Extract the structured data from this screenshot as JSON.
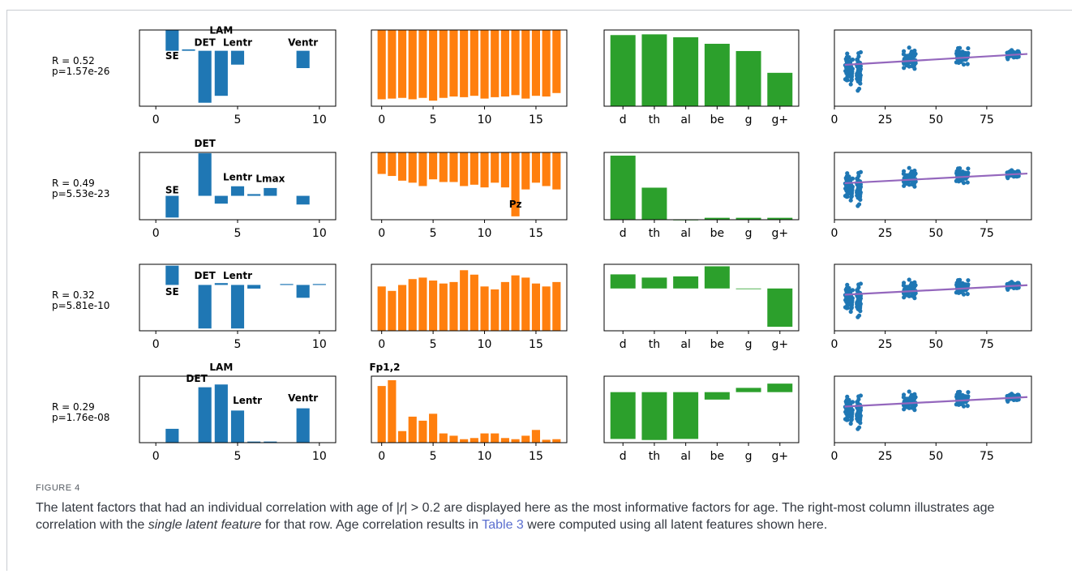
{
  "figure": {
    "label": "FIGURE 4",
    "caption": {
      "pre": "The latent factors that had an individual correlation with age of |",
      "r": "r",
      "mid": "| > 0.2 are displayed here as the most informative factors for age. The right-most column illustrates age correlation with the ",
      "italic": "single latent feature",
      "post1": " for that row. Age correlation results in ",
      "link": "Table 3",
      "post2": " were computed using all latent features shown here."
    }
  },
  "colors": {
    "blue": "#1f77b4",
    "orange": "#ff7f0e",
    "green": "#2ca02c",
    "fit_line": "#9467bd",
    "scatter": "#1f77b4"
  },
  "chart_data": [
    {
      "row": 1,
      "stats": [
        "R = 0.52",
        "p=1.57e-26"
      ],
      "panels": [
        {
          "type": "bar",
          "color": "blue",
          "xlim": [
            -1,
            11
          ],
          "ylim": [
            -0.8,
            0.3
          ],
          "xticks": [
            0,
            5,
            10
          ],
          "values": [
            [
              1,
              0.3
            ],
            [
              2,
              0.02
            ],
            [
              3,
              -0.75
            ],
            [
              4,
              -0.65
            ],
            [
              5,
              -0.2
            ],
            [
              9,
              -0.25
            ]
          ],
          "labels": [
            {
              "text": "SE",
              "x": 1,
              "y": -0.12
            },
            {
              "text": "DET",
              "x": 3,
              "y": 0.07
            },
            {
              "text": "LAM",
              "x": 4,
              "y": 0.25
            },
            {
              "text": "Lentr",
              "x": 5,
              "y": 0.07
            },
            {
              "text": "Ventr",
              "x": 9,
              "y": 0.07
            }
          ]
        },
        {
          "type": "bar",
          "color": "orange",
          "xlim": [
            -1,
            18
          ],
          "ylim": [
            -1.1,
            0
          ],
          "xticks": [
            0,
            5,
            10,
            15
          ],
          "values": [
            [
              0,
              -1
            ],
            [
              1,
              -0.99
            ],
            [
              2,
              -0.98
            ],
            [
              3,
              -1
            ],
            [
              4,
              -0.98
            ],
            [
              5,
              -1.02
            ],
            [
              6,
              -0.98
            ],
            [
              7,
              -0.96
            ],
            [
              8,
              -0.97
            ],
            [
              9,
              -0.95
            ],
            [
              10,
              -0.99
            ],
            [
              11,
              -0.97
            ],
            [
              12,
              -0.96
            ],
            [
              13,
              -0.94
            ],
            [
              14,
              -0.99
            ],
            [
              15,
              -0.95
            ],
            [
              16,
              -0.96
            ],
            [
              17,
              -0.91
            ]
          ]
        },
        {
          "type": "bar",
          "color": "green",
          "xlim": [
            -0.6,
            5.6
          ],
          "ylim": [
            0,
            1.05
          ],
          "categories": [
            "d",
            "th",
            "al",
            "be",
            "g",
            "g+"
          ],
          "values": [
            0.98,
            0.99,
            0.95,
            0.86,
            0.76,
            0.46
          ]
        },
        {
          "type": "scatter",
          "xlim": [
            0,
            97
          ],
          "ylim": [
            -0.4,
            1.35
          ],
          "xticks": [
            0,
            25,
            50,
            75
          ],
          "fit": [
            [
              5,
              0.55
            ],
            [
              95,
              0.8
            ]
          ],
          "clusters": [
            {
              "x": 7,
              "spread": 2,
              "center": 0.45,
              "sd": 0.45
            },
            {
              "x": 12,
              "spread": 1,
              "center": 0.4,
              "sd": 0.55
            },
            {
              "x": 37,
              "spread": 3,
              "center": 0.7,
              "sd": 0.3
            },
            {
              "x": 63,
              "spread": 3,
              "center": 0.75,
              "sd": 0.25
            },
            {
              "x": 88,
              "spread": 3,
              "center": 0.8,
              "sd": 0.15
            }
          ]
        }
      ]
    },
    {
      "row": 2,
      "stats": [
        "R = 0.49",
        "p=5.53e-23"
      ],
      "panels": [
        {
          "type": "bar",
          "color": "blue",
          "xlim": [
            -1,
            11
          ],
          "ylim": [
            -0.55,
            1.0
          ],
          "xticks": [
            0,
            5,
            10
          ],
          "values": [
            [
              1,
              -0.5
            ],
            [
              3,
              0.98
            ],
            [
              4,
              -0.18
            ],
            [
              5,
              0.22
            ],
            [
              6,
              0.04
            ],
            [
              7,
              0.18
            ],
            [
              9,
              -0.2
            ]
          ],
          "labels": [
            {
              "text": "SE",
              "x": 1,
              "y": 0.06
            },
            {
              "text": "DET",
              "x": 3,
              "y": 1.13
            },
            {
              "text": "Lentr",
              "x": 5,
              "y": 0.36
            },
            {
              "text": "Lmax",
              "x": 7,
              "y": 0.32
            }
          ]
        },
        {
          "type": "bar",
          "color": "orange",
          "xlim": [
            -1,
            18
          ],
          "ylim": [
            -1.0,
            0
          ],
          "xticks": [
            0,
            5,
            10,
            15
          ],
          "values": [
            [
              0,
              -0.32
            ],
            [
              1,
              -0.35
            ],
            [
              2,
              -0.42
            ],
            [
              3,
              -0.45
            ],
            [
              4,
              -0.5
            ],
            [
              5,
              -0.4
            ],
            [
              6,
              -0.44
            ],
            [
              7,
              -0.44
            ],
            [
              8,
              -0.5
            ],
            [
              9,
              -0.48
            ],
            [
              10,
              -0.52
            ],
            [
              11,
              -0.45
            ],
            [
              12,
              -0.52
            ],
            [
              13,
              -0.95
            ],
            [
              14,
              -0.55
            ],
            [
              15,
              -0.45
            ],
            [
              16,
              -0.5
            ],
            [
              17,
              -0.55
            ]
          ],
          "labels": [
            {
              "text": "Pz",
              "x": 13,
              "y": -0.82
            }
          ]
        },
        {
          "type": "bar",
          "color": "green",
          "xlim": [
            -0.6,
            5.6
          ],
          "ylim": [
            0,
            1.05
          ],
          "categories": [
            "d",
            "th",
            "al",
            "be",
            "g",
            "g+"
          ],
          "values": [
            1.0,
            0.5,
            0,
            0.03,
            0.03,
            0.03
          ]
        },
        {
          "type": "scatter",
          "xlim": [
            0,
            97
          ],
          "ylim": [
            -0.4,
            1.35
          ],
          "xticks": [
            0,
            25,
            50,
            75
          ],
          "fit": [
            [
              5,
              0.55
            ],
            [
              95,
              0.8
            ]
          ],
          "clusters": [
            {
              "x": 7,
              "spread": 2,
              "center": 0.45,
              "sd": 0.45
            },
            {
              "x": 12,
              "spread": 1,
              "center": 0.4,
              "sd": 0.55
            },
            {
              "x": 37,
              "spread": 3,
              "center": 0.7,
              "sd": 0.3
            },
            {
              "x": 63,
              "spread": 3,
              "center": 0.75,
              "sd": 0.25
            },
            {
              "x": 88,
              "spread": 3,
              "center": 0.8,
              "sd": 0.15
            }
          ]
        }
      ]
    },
    {
      "row": 3,
      "stats": [
        "R = 0.32",
        "p=5.81e-10"
      ],
      "panels": [
        {
          "type": "bar",
          "color": "blue",
          "xlim": [
            -1,
            11
          ],
          "ylim": [
            -1.0,
            0.45
          ],
          "xticks": [
            0,
            5,
            10
          ],
          "values": [
            [
              1,
              0.42
            ],
            [
              3,
              -0.95
            ],
            [
              4,
              0.04
            ],
            [
              5,
              -0.95
            ],
            [
              6,
              -0.08
            ],
            [
              8,
              0.02
            ],
            [
              9,
              -0.28
            ],
            [
              10,
              0.02
            ]
          ],
          "labels": [
            {
              "text": "SE",
              "x": 1,
              "y": -0.22
            },
            {
              "text": "DET",
              "x": 3,
              "y": 0.13
            },
            {
              "text": "Lentr",
              "x": 5,
              "y": 0.13
            }
          ]
        },
        {
          "type": "bar",
          "color": "orange",
          "xlim": [
            -1,
            18
          ],
          "ylim": [
            0,
            0.9
          ],
          "xticks": [
            0,
            5,
            10,
            15
          ],
          "values": [
            [
              0,
              0.6
            ],
            [
              1,
              0.54
            ],
            [
              2,
              0.62
            ],
            [
              3,
              0.7
            ],
            [
              4,
              0.72
            ],
            [
              5,
              0.68
            ],
            [
              6,
              0.64
            ],
            [
              7,
              0.66
            ],
            [
              8,
              0.82
            ],
            [
              9,
              0.76
            ],
            [
              10,
              0.6
            ],
            [
              11,
              0.56
            ],
            [
              12,
              0.66
            ],
            [
              13,
              0.75
            ],
            [
              14,
              0.72
            ],
            [
              15,
              0.64
            ],
            [
              16,
              0.6
            ],
            [
              17,
              0.66
            ]
          ]
        },
        {
          "type": "bar",
          "color": "green",
          "xlim": [
            -0.6,
            5.6
          ],
          "ylim": [
            -1.05,
            0.6
          ],
          "categories": [
            "d",
            "th",
            "al",
            "be",
            "g",
            "g+"
          ],
          "values": [
            0.35,
            0.27,
            0.3,
            0.55,
            0,
            -0.95
          ]
        },
        {
          "type": "scatter",
          "xlim": [
            0,
            97
          ],
          "ylim": [
            -0.4,
            1.35
          ],
          "xticks": [
            0,
            25,
            50,
            75
          ],
          "fit": [
            [
              5,
              0.55
            ],
            [
              95,
              0.8
            ]
          ],
          "clusters": [
            {
              "x": 7,
              "spread": 2,
              "center": 0.45,
              "sd": 0.45
            },
            {
              "x": 12,
              "spread": 1,
              "center": 0.4,
              "sd": 0.55
            },
            {
              "x": 37,
              "spread": 3,
              "center": 0.7,
              "sd": 0.3
            },
            {
              "x": 63,
              "spread": 3,
              "center": 0.75,
              "sd": 0.25
            },
            {
              "x": 88,
              "spread": 3,
              "center": 0.8,
              "sd": 0.15
            }
          ]
        }
      ]
    },
    {
      "row": 4,
      "stats": [
        "R = 0.29",
        "p=1.76e-08"
      ],
      "panels": [
        {
          "type": "bar",
          "color": "blue",
          "xlim": [
            -1,
            11
          ],
          "ylim": [
            0,
            1.2
          ],
          "xticks": [
            0,
            5,
            10
          ],
          "values": [
            [
              1,
              0.25
            ],
            [
              3,
              1.0
            ],
            [
              4,
              1.05
            ],
            [
              5,
              0.58
            ],
            [
              6,
              0.02
            ],
            [
              7,
              0.02
            ],
            [
              9,
              0.62
            ]
          ],
          "labels": [
            {
              "text": "DET",
              "x": 2.5,
              "y": 1.1
            },
            {
              "text": "LAM",
              "x": 4,
              "y": 1.3
            },
            {
              "text": "Lentr",
              "x": 5.6,
              "y": 0.7
            },
            {
              "text": "Ventr",
              "x": 9,
              "y": 0.75
            }
          ]
        },
        {
          "type": "bar",
          "color": "orange",
          "xlim": [
            -1,
            18
          ],
          "ylim": [
            0,
            1.15
          ],
          "xticks": [
            0,
            5,
            10,
            15
          ],
          "values": [
            [
              0,
              0.98
            ],
            [
              1,
              1.08
            ],
            [
              2,
              0.2
            ],
            [
              3,
              0.45
            ],
            [
              4,
              0.38
            ],
            [
              5,
              0.5
            ],
            [
              6,
              0.16
            ],
            [
              7,
              0.12
            ],
            [
              8,
              0.06
            ],
            [
              9,
              0.08
            ],
            [
              10,
              0.16
            ],
            [
              11,
              0.16
            ],
            [
              12,
              0.08
            ],
            [
              13,
              0.06
            ],
            [
              14,
              0.12
            ],
            [
              15,
              0.22
            ],
            [
              16,
              0.05
            ],
            [
              17,
              0.06
            ]
          ],
          "labels": [
            {
              "text": "Fp1,2",
              "x": 0.3,
              "y": 1.25
            }
          ]
        },
        {
          "type": "bar",
          "color": "green",
          "xlim": [
            -0.6,
            5.6
          ],
          "ylim": [
            -0.95,
            0.3
          ],
          "categories": [
            "d",
            "th",
            "al",
            "be",
            "g",
            "g+"
          ],
          "values": [
            -0.88,
            -0.9,
            -0.88,
            -0.14,
            0.08,
            0.16
          ]
        },
        {
          "type": "scatter",
          "xlim": [
            0,
            97
          ],
          "ylim": [
            -0.4,
            1.35
          ],
          "xticks": [
            0,
            25,
            50,
            75
          ],
          "fit": [
            [
              5,
              0.55
            ],
            [
              95,
              0.8
            ]
          ],
          "clusters": [
            {
              "x": 7,
              "spread": 2,
              "center": 0.45,
              "sd": 0.45
            },
            {
              "x": 12,
              "spread": 1,
              "center": 0.4,
              "sd": 0.55
            },
            {
              "x": 37,
              "spread": 3,
              "center": 0.7,
              "sd": 0.3
            },
            {
              "x": 63,
              "spread": 3,
              "center": 0.75,
              "sd": 0.25
            },
            {
              "x": 88,
              "spread": 3,
              "center": 0.8,
              "sd": 0.15
            }
          ]
        }
      ]
    }
  ]
}
